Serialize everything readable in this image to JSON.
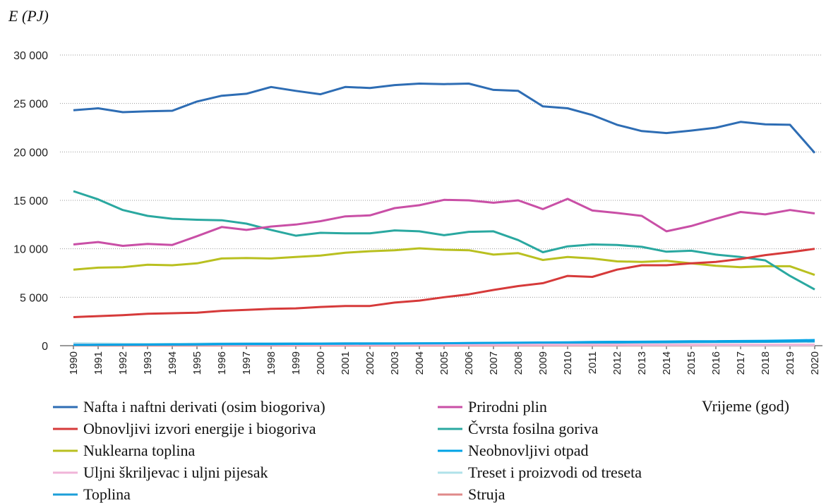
{
  "chart_data": {
    "type": "line",
    "y_label": "E (PJ)",
    "x_label": "Vrijeme (god)",
    "categories": [
      "1990",
      "1991",
      "1992",
      "1993",
      "1994",
      "1995",
      "1996",
      "1997",
      "1998",
      "1999",
      "2000",
      "2001",
      "2002",
      "2003",
      "2004",
      "2005",
      "2006",
      "2007",
      "2008",
      "2009",
      "2010",
      "2011",
      "2012",
      "2013",
      "2014",
      "2015",
      "2016",
      "2017",
      "2018",
      "2019",
      "2020"
    ],
    "ylim": [
      0,
      30000
    ],
    "yticks": [
      0,
      {
        "value": 5000,
        "label": "5 000"
      },
      {
        "value": 10000,
        "label": "10 000"
      },
      {
        "value": 15000,
        "label": "15 000"
      },
      {
        "value": 20000,
        "label": "20 000"
      },
      {
        "value": 25000,
        "label": "25 000"
      },
      {
        "value": 30000,
        "label": "30 000"
      }
    ],
    "grid": true,
    "series": [
      {
        "name": "Nafta i naftni derivati (osim biogoriva)",
        "color": "#2e6db4",
        "values": [
          24300,
          24500,
          24100,
          24200,
          24250,
          25200,
          25800,
          26000,
          26700,
          26300,
          25950,
          26700,
          26600,
          26900,
          27050,
          27000,
          27050,
          26400,
          26300,
          24700,
          24500,
          23800,
          22800,
          22150,
          21950,
          22200,
          22500,
          23100,
          22850,
          22800,
          19900
        ]
      },
      {
        "name": "Prirodni plin",
        "color": "#c94fa6",
        "values": [
          10450,
          10700,
          10300,
          10500,
          10400,
          11300,
          12250,
          11950,
          12300,
          12500,
          12850,
          13350,
          13450,
          14200,
          14500,
          15050,
          15000,
          14750,
          15000,
          14100,
          15150,
          13950,
          13700,
          13400,
          11800,
          12350,
          13100,
          13800,
          13550,
          14000,
          13650
        ]
      },
      {
        "name": "Obnovljivi izvori energije i biogoriva",
        "color": "#d63a3a",
        "values": [
          2950,
          3050,
          3150,
          3300,
          3350,
          3400,
          3600,
          3700,
          3800,
          3850,
          4000,
          4100,
          4100,
          4450,
          4650,
          5000,
          5300,
          5750,
          6150,
          6450,
          7200,
          7100,
          7850,
          8300,
          8300,
          8500,
          8650,
          8950,
          9350,
          9650,
          10000
        ]
      },
      {
        "name": "Čvrsta fosilna goriva",
        "color": "#2aa8a0",
        "values": [
          15950,
          15100,
          14000,
          13400,
          13100,
          13000,
          12950,
          12600,
          11950,
          11350,
          11650,
          11600,
          11600,
          11900,
          11800,
          11400,
          11750,
          11800,
          10900,
          9650,
          10250,
          10450,
          10400,
          10200,
          9700,
          9800,
          9400,
          9150,
          8800,
          7200,
          5800
        ]
      },
      {
        "name": "Nuklearna toplina",
        "color": "#b9c020",
        "values": [
          7850,
          8050,
          8100,
          8350,
          8300,
          8500,
          9000,
          9050,
          9000,
          9150,
          9300,
          9600,
          9750,
          9850,
          10050,
          9900,
          9850,
          9400,
          9550,
          8850,
          9150,
          9000,
          8700,
          8650,
          8750,
          8500,
          8250,
          8100,
          8200,
          8200,
          7300
        ]
      },
      {
        "name": "Neobnovljivi otpad",
        "color": "#00a3e6",
        "values": [
          80,
          90,
          100,
          110,
          120,
          130,
          150,
          160,
          170,
          180,
          190,
          200,
          210,
          220,
          230,
          250,
          270,
          290,
          310,
          330,
          350,
          380,
          400,
          410,
          430,
          450,
          460,
          480,
          500,
          540,
          580
        ]
      },
      {
        "name": "Uljni škriljevac i uljni pijesak",
        "color": "#f0b4d8",
        "values": [
          120,
          110,
          100,
          100,
          100,
          100,
          100,
          100,
          100,
          100,
          100,
          100,
          100,
          100,
          100,
          100,
          100,
          100,
          100,
          100,
          100,
          100,
          100,
          100,
          100,
          100,
          100,
          100,
          100,
          100,
          100
        ]
      },
      {
        "name": "Treset i proizvodi od treseta",
        "color": "#b0e2ea",
        "values": [
          250,
          220,
          190,
          180,
          170,
          160,
          150,
          150,
          140,
          140,
          130,
          130,
          120,
          120,
          110,
          110,
          100,
          100,
          90,
          90,
          80,
          80,
          80,
          70,
          70,
          70,
          60,
          60,
          60,
          50,
          50
        ]
      },
      {
        "name": "Toplina",
        "color": "#1c9fd8",
        "values": [
          200,
          190,
          180,
          180,
          180,
          190,
          200,
          210,
          210,
          220,
          220,
          230,
          230,
          240,
          240,
          250,
          260,
          270,
          280,
          290,
          300,
          320,
          330,
          340,
          360,
          370,
          380,
          390,
          400,
          420,
          440
        ]
      },
      {
        "name": "Struja",
        "color": "#e08a8a",
        "values": [
          30,
          20,
          20,
          20,
          20,
          20,
          20,
          20,
          20,
          20,
          20,
          20,
          20,
          20,
          20,
          20,
          20,
          20,
          20,
          20,
          20,
          20,
          20,
          20,
          20,
          20,
          20,
          20,
          20,
          20,
          20
        ]
      }
    ]
  }
}
